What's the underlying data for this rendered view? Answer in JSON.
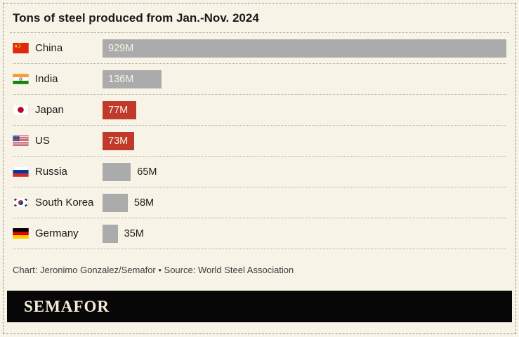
{
  "title": "Tons of steel produced from Jan.-Nov. 2024",
  "credit": "Chart: Jeronimo Gonzalez/Semafor • Source: World Steel Association",
  "brand": "SEMAFOR",
  "colors": {
    "background": "#f8f3e7",
    "bar_default": "#ababab",
    "bar_highlight": "#bf3a2b",
    "footer_bg": "#070707",
    "brand_text": "#f4ecd9"
  },
  "chart_data": {
    "type": "bar",
    "title": "Tons of steel produced from Jan.-Nov. 2024",
    "unit": "million tons",
    "orientation": "horizontal",
    "xlim": [
      0,
      929
    ],
    "max": 929,
    "categories": [
      "China",
      "India",
      "Japan",
      "US",
      "Russia",
      "South Korea",
      "Germany"
    ],
    "values": [
      929,
      136,
      77,
      73,
      65,
      58,
      35
    ],
    "rows": [
      {
        "country": "China",
        "value": 929,
        "label": "929M",
        "flag": "china",
        "highlight": false,
        "label_inside": true
      },
      {
        "country": "India",
        "value": 136,
        "label": "136M",
        "flag": "india",
        "highlight": false,
        "label_inside": true
      },
      {
        "country": "Japan",
        "value": 77,
        "label": "77M",
        "flag": "japan",
        "highlight": true,
        "label_inside": true
      },
      {
        "country": "US",
        "value": 73,
        "label": "73M",
        "flag": "us",
        "highlight": true,
        "label_inside": true
      },
      {
        "country": "Russia",
        "value": 65,
        "label": "65M",
        "flag": "russia",
        "highlight": false,
        "label_inside": false
      },
      {
        "country": "South Korea",
        "value": 58,
        "label": "58M",
        "flag": "south-korea",
        "highlight": false,
        "label_inside": false
      },
      {
        "country": "Germany",
        "value": 35,
        "label": "35M",
        "flag": "germany",
        "highlight": false,
        "label_inside": false
      }
    ]
  }
}
